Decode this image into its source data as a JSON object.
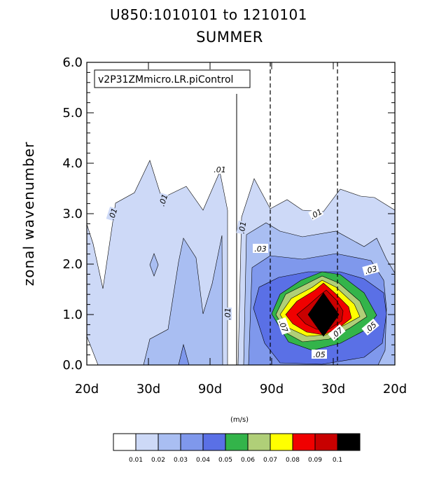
{
  "chart_data": {
    "type": "contour",
    "title": "U850:1010101 to 1210101",
    "subtitle": "SUMMER",
    "ylabel": "zonal wavenumber",
    "ylim": [
      0,
      6
    ],
    "y_ticks": [
      "0.0",
      "1.0",
      "2.0",
      "3.0",
      "4.0",
      "5.0",
      "6.0"
    ],
    "x_ticks": [
      "20d",
      "30d",
      "90d",
      "90d",
      "30d",
      "20d"
    ],
    "case_label": "v2P31ZMmicro.LR.piControl",
    "units": "(m/s)",
    "contour_levels": [
      "0.01",
      "0.02",
      "0.03",
      "0.04",
      "0.05",
      "0.06",
      "0.07",
      "0.08",
      "0.09",
      "0.1"
    ],
    "colors": [
      "#ffffff",
      "#cdd9f7",
      "#a9bef2",
      "#7f98ec",
      "#5a70e6",
      "#33b44a",
      "#b0cf78",
      "#ffff00",
      "#f00000",
      "#c80000",
      "#000000"
    ],
    "contour_line_labels": [
      ".01",
      ".01",
      ".01",
      ".01",
      ".01",
      ".01",
      ".03",
      ".03",
      ".07",
      ".07",
      ".05",
      ".05"
    ],
    "notes_on_reference_lines": "solid vertical line at zero frequency; dashed vertical lines at 90d and 30d on the right side"
  }
}
